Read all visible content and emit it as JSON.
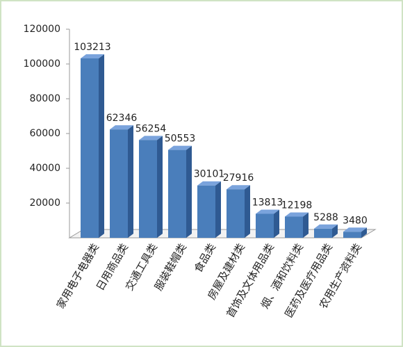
{
  "chart_data": {
    "type": "bar3d",
    "categories": [
      "家用电子电器类",
      "日用商品类",
      "交通工具类",
      "服装鞋帽类",
      "食品类",
      "房屋及建材类",
      "首饰及文体用品类",
      "烟、酒和饮料类",
      "医药及医疗用品类",
      "农用生产资料类"
    ],
    "values": [
      103213,
      62346,
      56254,
      50553,
      30101,
      27916,
      13813,
      12198,
      5288,
      3480
    ],
    "color": "#4a7ebb",
    "ylim": [
      0,
      120000
    ],
    "yticks": [
      20000,
      40000,
      60000,
      80000,
      100000,
      120000
    ],
    "grid": false
  }
}
